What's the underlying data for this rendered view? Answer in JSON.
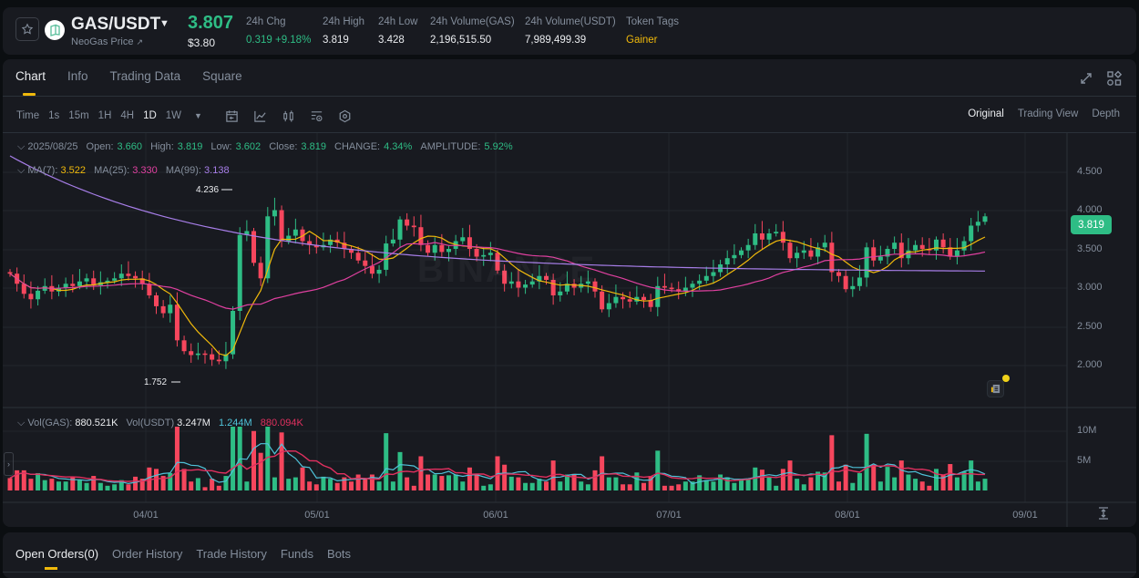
{
  "header": {
    "pair": "GAS/USDT",
    "subtitle": "NeoGas Price",
    "last_price": "3.807",
    "last_price_usd": "$3.80",
    "stats": [
      {
        "label": "24h Chg",
        "value": "0.319 +9.18%",
        "color": "#2ebd85"
      },
      {
        "label": "24h High",
        "value": "3.819",
        "color": "#eaecef"
      },
      {
        "label": "24h Low",
        "value": "3.428",
        "color": "#eaecef"
      },
      {
        "label": "24h Volume(GAS)",
        "value": "2,196,515.50",
        "color": "#eaecef"
      },
      {
        "label": "24h Volume(USDT)",
        "value": "7,989,499.39",
        "color": "#eaecef"
      },
      {
        "label": "Token Tags",
        "value": "Gainer",
        "color": "#f0b90b"
      }
    ]
  },
  "tabs": [
    {
      "label": "Chart",
      "active": true
    },
    {
      "label": "Info",
      "active": false
    },
    {
      "label": "Trading Data",
      "active": false
    },
    {
      "label": "Square",
      "active": false
    }
  ],
  "toolbar": {
    "time_label": "Time",
    "intervals": [
      {
        "label": "1s",
        "active": false
      },
      {
        "label": "15m",
        "active": false
      },
      {
        "label": "1H",
        "active": false
      },
      {
        "label": "4H",
        "active": false
      },
      {
        "label": "1D",
        "active": true
      },
      {
        "label": "1W",
        "active": false
      }
    ],
    "views": [
      {
        "label": "Original",
        "active": true
      },
      {
        "label": "Trading View",
        "active": false
      },
      {
        "label": "Depth",
        "active": false
      }
    ]
  },
  "ohlc_legend": {
    "date": "2025/08/25",
    "open_label": "Open:",
    "open": "3.660",
    "high_label": "High:",
    "high": "3.819",
    "low_label": "Low:",
    "low": "3.602",
    "close_label": "Close:",
    "close": "3.819",
    "change_label": "CHANGE:",
    "change": "4.34%",
    "amplitude_label": "AMPLITUDE:",
    "amplitude": "5.92%"
  },
  "ma_legend": {
    "ma7_label": "MA(7):",
    "ma7": "3.522",
    "ma25_label": "MA(25):",
    "ma25": "3.330",
    "ma99_label": "MA(99):",
    "ma99": "3.138"
  },
  "vol_legend": {
    "vol_gas_label": "Vol(GAS):",
    "vol_gas": "880.521K",
    "vol_usdt_label": "Vol(USDT)",
    "vol_usdt": "3.247M",
    "ma5": "1.244M",
    "ma10": "880.094K"
  },
  "current_price_tag": "3.819",
  "annotations": {
    "high": "4.236",
    "low": "1.752"
  },
  "watermark": "BINANCE",
  "colors": {
    "up": "#2ebd85",
    "down": "#f6465d",
    "ma7": "#f0b90b",
    "ma25": "#e040a0",
    "ma99": "#a77ee8",
    "vol_ma5": "#4fc3d9",
    "vol_ma10": "#e0305f",
    "accent": "#f0b90b"
  },
  "chart_data": {
    "type": "candlestick",
    "title": "GAS/USDT 1D",
    "y_axis_ticks": [
      "4.500",
      "4.000",
      "3.500",
      "3.000",
      "2.500",
      "2.000"
    ],
    "x_axis_ticks": [
      "04/01",
      "05/01",
      "06/01",
      "07/01",
      "08/01",
      "09/01"
    ],
    "volume_axis_ticks": [
      "10M",
      "5M"
    ],
    "close": [
      3.08,
      2.95,
      2.82,
      2.75,
      2.86,
      2.92,
      2.85,
      2.9,
      2.95,
      2.92,
      2.98,
      3.02,
      2.93,
      2.97,
      2.99,
      3.02,
      3.08,
      3.05,
      3.02,
      2.95,
      2.8,
      2.66,
      2.57,
      2.68,
      2.22,
      2.08,
      2.03,
      2.05,
      2.04,
      1.97,
      1.95,
      2.04,
      2.6,
      3.58,
      3.63,
      3.22,
      3.02,
      3.82,
      3.9,
      3.5,
      3.57,
      3.65,
      3.5,
      3.45,
      3.42,
      3.45,
      3.52,
      3.48,
      3.4,
      3.35,
      3.25,
      3.18,
      3.08,
      3.13,
      3.47,
      3.52,
      3.78,
      3.7,
      3.68,
      3.45,
      3.35,
      3.45,
      3.36,
      3.4,
      3.5,
      3.55,
      3.4,
      3.3,
      3.32,
      3.35,
      3.12,
      2.95,
      2.98,
      2.9,
      2.94,
      2.98,
      3.05,
      3.0,
      2.8,
      2.85,
      2.95,
      2.9,
      2.95,
      2.98,
      2.85,
      2.62,
      2.7,
      2.78,
      2.75,
      2.72,
      2.78,
      2.74,
      2.65,
      2.92,
      2.9,
      2.88,
      2.85,
      2.9,
      2.95,
      2.99,
      3.05,
      3.1,
      3.2,
      3.28,
      3.32,
      3.38,
      3.45,
      3.6,
      3.52,
      3.6,
      3.62,
      3.48,
      3.28,
      3.35,
      3.38,
      3.3,
      3.42,
      3.48,
      3.1,
      3.05,
      2.88,
      2.92,
      3.03,
      3.42,
      3.25,
      3.3,
      3.4,
      3.48,
      3.28,
      3.38,
      3.45,
      3.4,
      3.38,
      3.52,
      3.42,
      3.3,
      3.38,
      3.5,
      3.7,
      3.75,
      3.82
    ],
    "volume_millions": "approx daily volume; peaks ~12M near 04/10, ~5M spikes near 07/20 and 08/05"
  }
}
